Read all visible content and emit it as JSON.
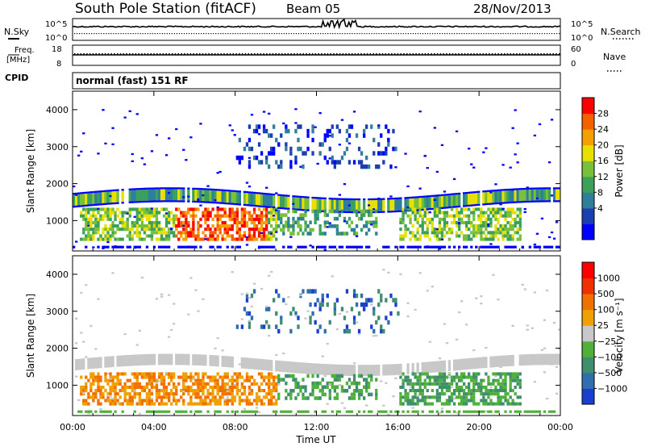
{
  "header": {
    "station": "South Pole Station (fitACF)",
    "beam": "Beam 05",
    "date": "28/Nov/2013"
  },
  "top_panels": {
    "nsky_label": "N.Sky",
    "nsearch_label": "N.Search",
    "n_ticks": [
      "10^5",
      "10^0"
    ],
    "freq_label": "Freq.",
    "freq_unit": "[MHz]",
    "freq_ticks": [
      "18",
      "8"
    ],
    "nave_ticks": [
      "60",
      "0"
    ],
    "nave_label": "Nave",
    "cpid_label": "CPID",
    "cpid_value": "normal (fast) 151 RF"
  },
  "chart_data": [
    {
      "type": "heatmap",
      "name": "Power",
      "ylabel": "Slant Range [km]",
      "ylim": [
        180,
        4500
      ],
      "yticks": [
        "1000",
        "2000",
        "3000",
        "4000"
      ],
      "colorbar_label": "Power [dB]",
      "colorbar_ticks": [
        "28",
        "24",
        "20",
        "16",
        "12",
        "8",
        "4"
      ],
      "colorscale": [
        "#0000ff",
        "#1a3fb0",
        "#2f7f9a",
        "#3aa05a",
        "#79c03a",
        "#e8e000",
        "#f5a000",
        "#f56000",
        "#ff0000"
      ]
    },
    {
      "type": "heatmap",
      "name": "Velocity",
      "ylabel": "Slant Range [km]",
      "ylim": [
        180,
        4500
      ],
      "yticks": [
        "1000",
        "2000",
        "3000",
        "4000"
      ],
      "colorbar_label": "Velocity [m s⁻¹]",
      "colorbar_ticks": [
        "1000",
        "500",
        "100",
        "25",
        "−25",
        "−100",
        "−500",
        "−1000"
      ],
      "colorscale": [
        "#1a3fd0",
        "#2f6fb0",
        "#3f8f6f",
        "#4fb03a",
        "#c8c8c8",
        "#f0a000",
        "#f07000",
        "#f03000",
        "#ff0000"
      ],
      "xlabel": "Time UT",
      "xticks": [
        "00:00",
        "04:00",
        "08:00",
        "12:00",
        "16:00",
        "20:00",
        "00:00"
      ]
    }
  ]
}
